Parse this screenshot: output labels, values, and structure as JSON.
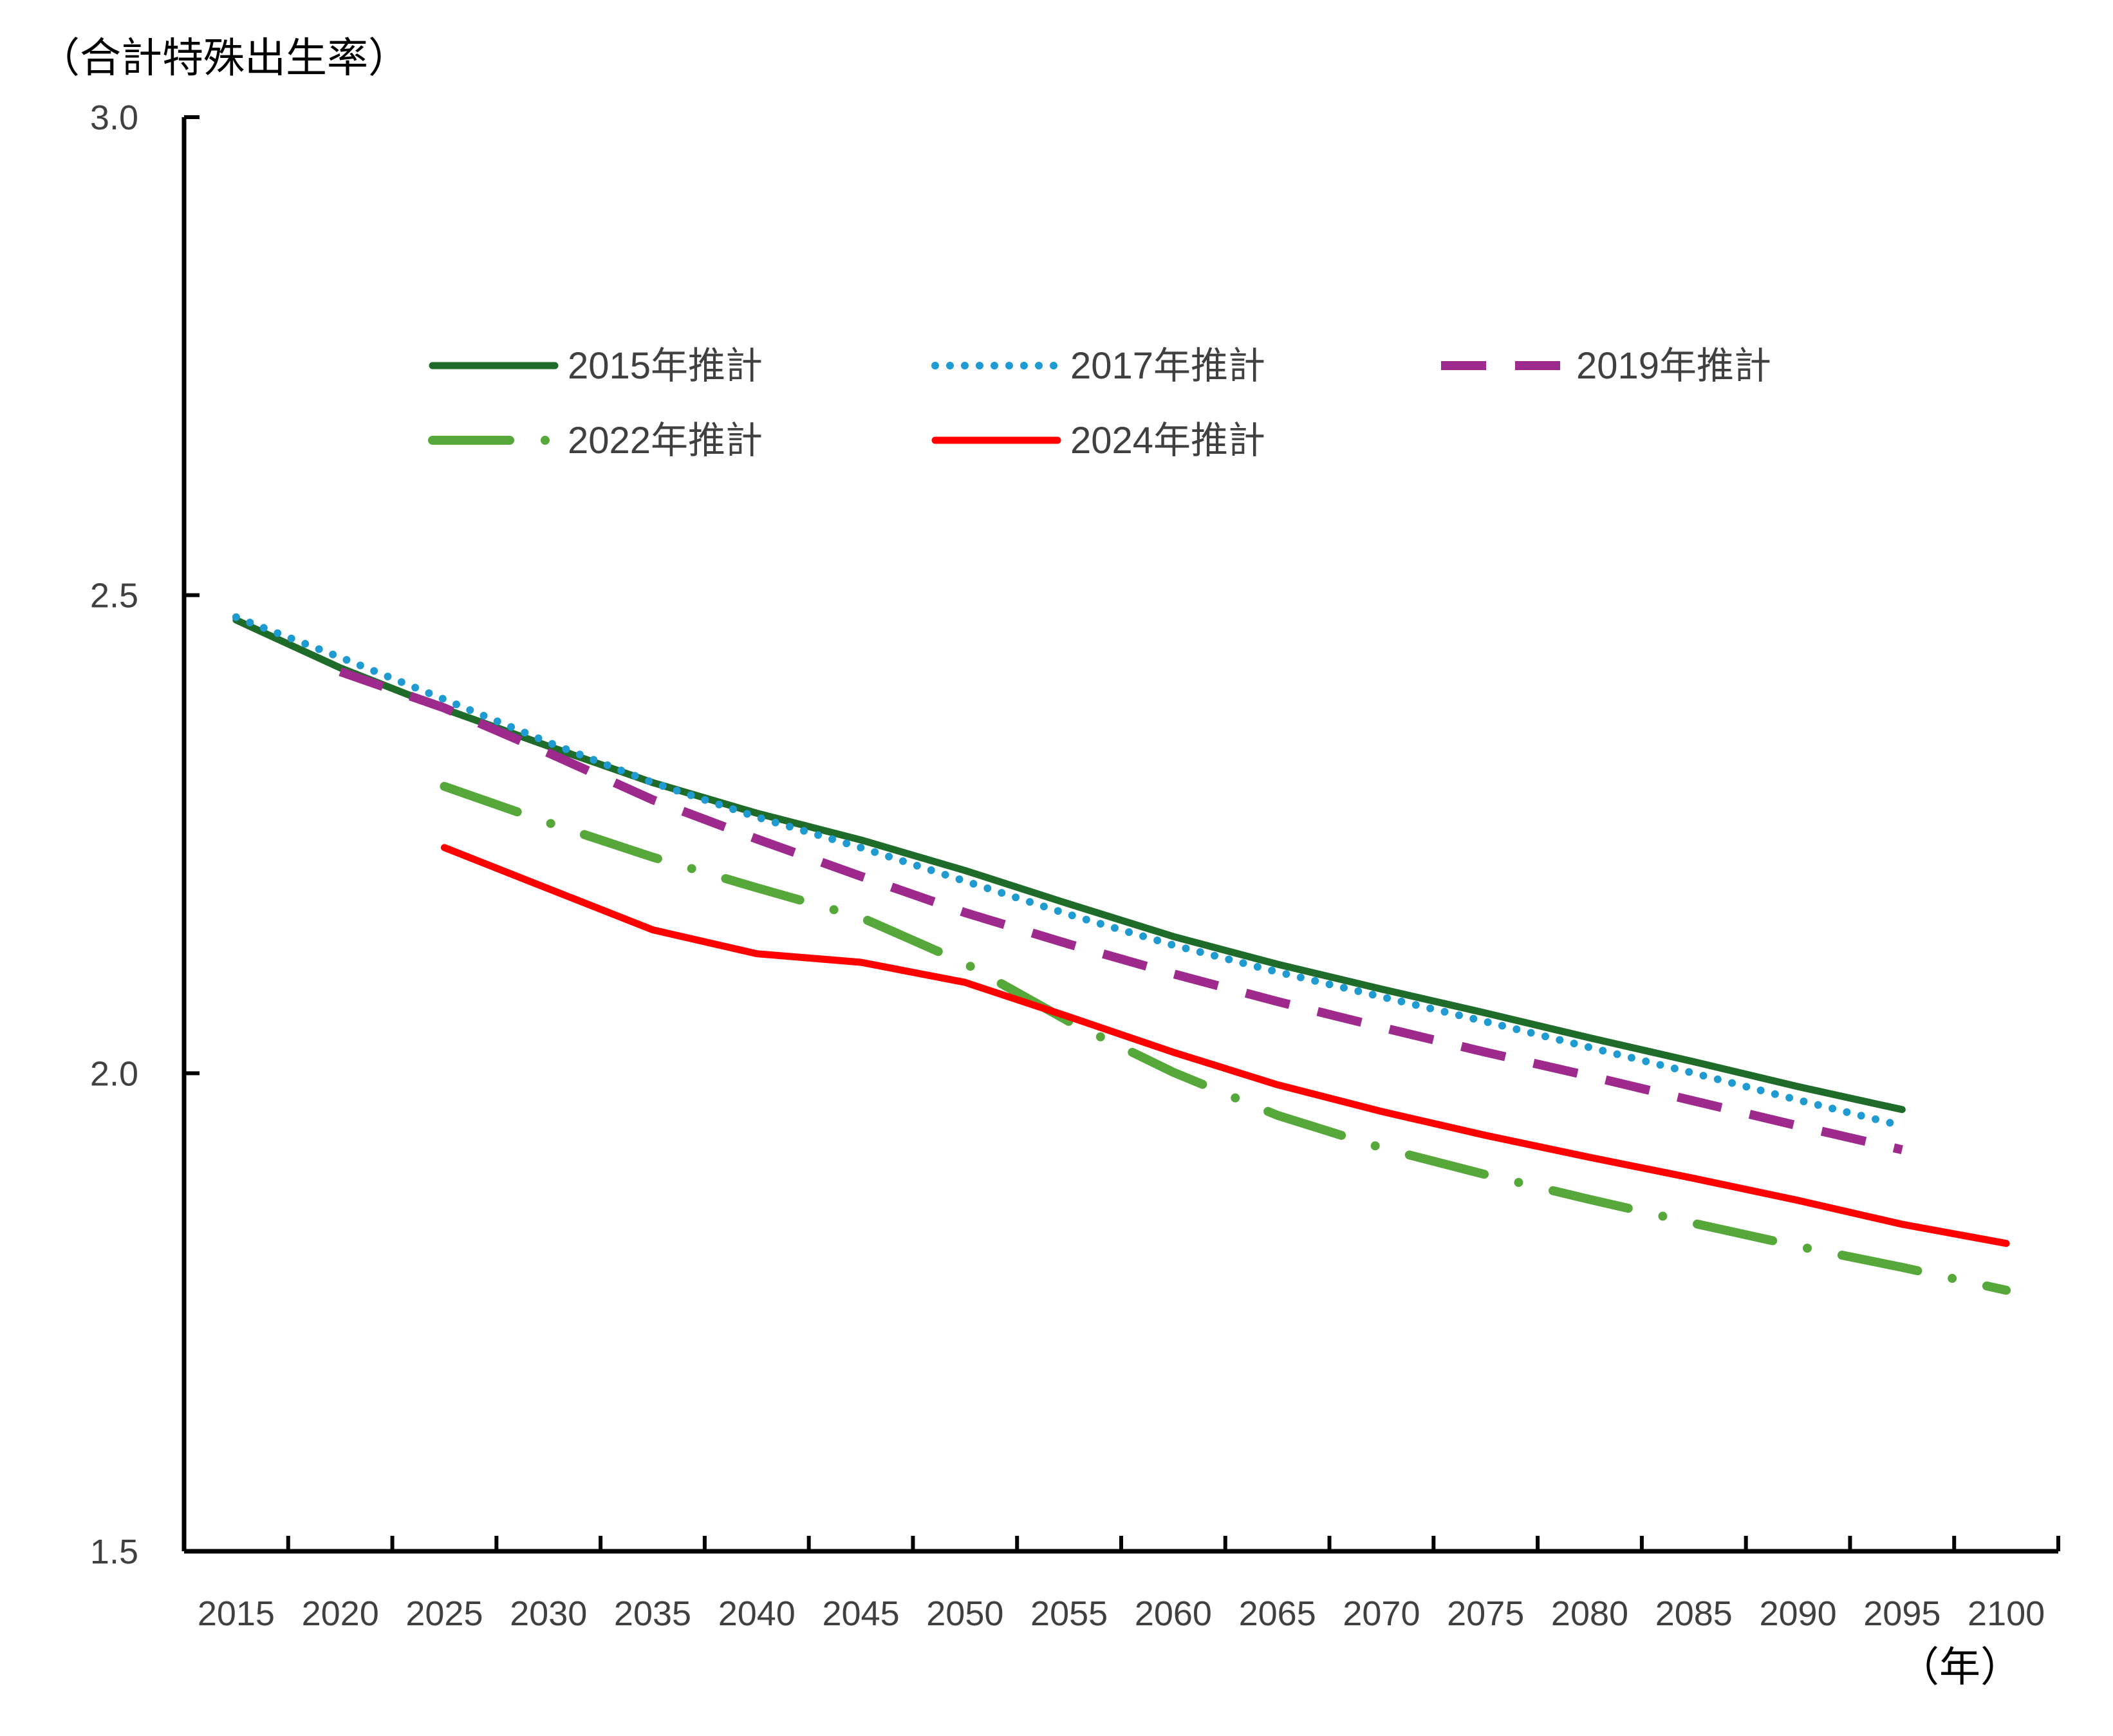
{
  "chart_data": {
    "type": "line",
    "ylabel": "（合計特殊出生率）",
    "xlabel": "（年）",
    "xlim": [
      2012.5,
      2102.5
    ],
    "ylim": [
      1.5,
      3.0
    ],
    "x_ticks": [
      2015,
      2020,
      2025,
      2030,
      2035,
      2040,
      2045,
      2050,
      2055,
      2060,
      2065,
      2070,
      2075,
      2080,
      2085,
      2090,
      2095,
      2100
    ],
    "y_ticks": [
      {
        "value": 1.5,
        "label": "1.5"
      },
      {
        "value": 2.0,
        "label": "2.0"
      },
      {
        "value": 2.5,
        "label": "2.5"
      },
      {
        "value": 3.0,
        "label": "3.0"
      }
    ],
    "grid": false,
    "legend": "top",
    "series": [
      {
        "name": "2015年推計",
        "color": "#1E6B2A",
        "style": "solid",
        "x": [
          2015,
          2020,
          2025,
          2030,
          2035,
          2040,
          2045,
          2050,
          2055,
          2060,
          2065,
          2070,
          2075,
          2080,
          2085,
          2090,
          2095
        ],
        "values": [
          2.474,
          2.424,
          2.381,
          2.342,
          2.304,
          2.272,
          2.244,
          2.212,
          2.177,
          2.143,
          2.114,
          2.088,
          2.063,
          2.037,
          2.012,
          1.986,
          1.962
        ]
      },
      {
        "name": "2017年推計",
        "color": "#1F9BD1",
        "style": "dotted",
        "x": [
          2015,
          2020,
          2025,
          2030,
          2035,
          2040,
          2045,
          2050,
          2055,
          2060,
          2065,
          2070,
          2075,
          2080,
          2085,
          2090,
          2095
        ],
        "values": [
          2.477,
          2.435,
          2.391,
          2.346,
          2.304,
          2.268,
          2.236,
          2.201,
          2.166,
          2.134,
          2.106,
          2.08,
          2.054,
          2.027,
          2.0,
          1.972,
          1.945
        ]
      },
      {
        "name": "2019年推計",
        "color": "#9E2A8E",
        "style": "dashed",
        "x": [
          2020,
          2025,
          2030,
          2035,
          2040,
          2045,
          2050,
          2055,
          2060,
          2065,
          2070,
          2075,
          2080,
          2085,
          2090,
          2095
        ],
        "values": [
          2.42,
          2.382,
          2.335,
          2.286,
          2.245,
          2.206,
          2.168,
          2.135,
          2.104,
          2.075,
          2.048,
          2.022,
          1.997,
          1.971,
          1.945,
          1.92
        ]
      },
      {
        "name": "2022年推計",
        "color": "#56A83A",
        "style": "dashdot",
        "x": [
          2025,
          2030,
          2035,
          2040,
          2045,
          2050,
          2055,
          2060,
          2065,
          2070,
          2075,
          2080,
          2085,
          2090,
          2095,
          2100
        ],
        "values": [
          2.3,
          2.262,
          2.226,
          2.194,
          2.163,
          2.115,
          2.054,
          2.001,
          1.956,
          1.922,
          1.894,
          1.868,
          1.843,
          1.819,
          1.797,
          1.773
        ]
      },
      {
        "name": "2024年推計",
        "color": "#FF0000",
        "style": "solid",
        "x": [
          2025,
          2030,
          2035,
          2040,
          2045,
          2050,
          2055,
          2060,
          2065,
          2070,
          2075,
          2080,
          2085,
          2090,
          2095,
          2100
        ],
        "values": [
          2.236,
          2.193,
          2.15,
          2.125,
          2.116,
          2.095,
          2.059,
          2.022,
          1.988,
          1.96,
          1.935,
          1.912,
          1.89,
          1.867,
          1.842,
          1.822
        ]
      }
    ]
  }
}
